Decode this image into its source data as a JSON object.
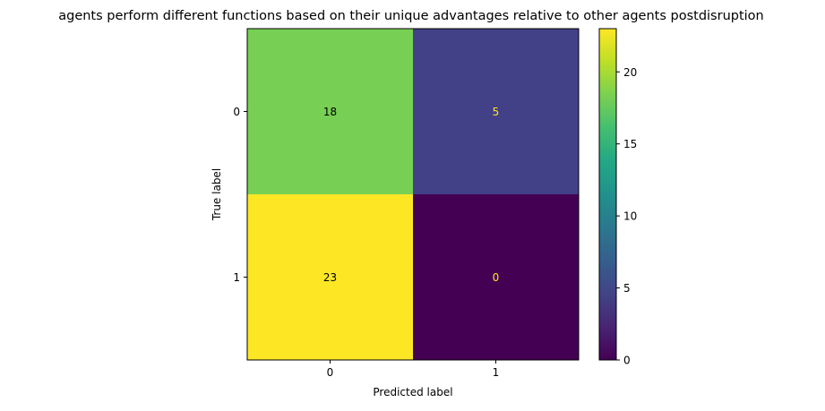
{
  "chart_data": {
    "type": "heatmap",
    "title": "agents perform different functions based on their unique advantages relative to other agents postdisruption",
    "xlabel": "Predicted label",
    "ylabel": "True label",
    "x_categories": [
      "0",
      "1"
    ],
    "y_categories": [
      "0",
      "1"
    ],
    "matrix": [
      [
        18,
        5
      ],
      [
        23,
        0
      ]
    ],
    "colormap": "viridis",
    "colorbar": {
      "min": 0,
      "max": 23,
      "ticks": [
        0,
        5,
        10,
        15,
        20
      ]
    },
    "cell_colors": [
      [
        "#77d054",
        "#424086"
      ],
      [
        "#fde725",
        "#440154"
      ]
    ],
    "text_colors": [
      [
        "#000000",
        "#fde725"
      ],
      [
        "#000000",
        "#fde725"
      ]
    ]
  }
}
